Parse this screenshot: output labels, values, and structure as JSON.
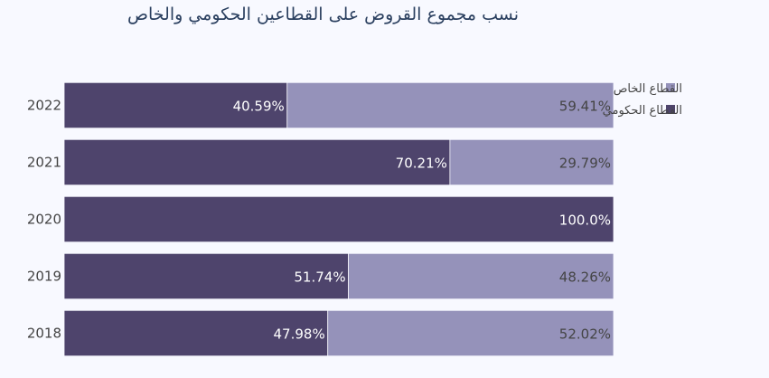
{
  "chart_data": {
    "type": "bar",
    "orientation": "horizontal",
    "stacked": true,
    "title": "نسب مجموع القروض على القطاعين الحكومي والخاص",
    "categories": [
      "2022",
      "2021",
      "2020",
      "2019",
      "2018"
    ],
    "series": [
      {
        "name": "القطاع الحكومي",
        "values": [
          40.59,
          70.21,
          100.0,
          51.74,
          47.98
        ],
        "labels": [
          "40.59%",
          "70.21%",
          "100.0%",
          "51.74%",
          "47.98%"
        ],
        "color": "#4e446c",
        "label_color": "#ffffff"
      },
      {
        "name": "القطاع الخاص",
        "values": [
          59.41,
          29.79,
          0,
          48.26,
          52.02
        ],
        "labels": [
          "59.41%",
          "29.79%",
          "",
          "48.26%",
          "52.02%"
        ],
        "color": "#9592ba",
        "label_color": "#444444"
      }
    ],
    "xlim": [
      0,
      100
    ],
    "legend_position": "top-right",
    "legend_order": [
      "القطاع الخاص",
      "القطاع الحكومي"
    ]
  }
}
